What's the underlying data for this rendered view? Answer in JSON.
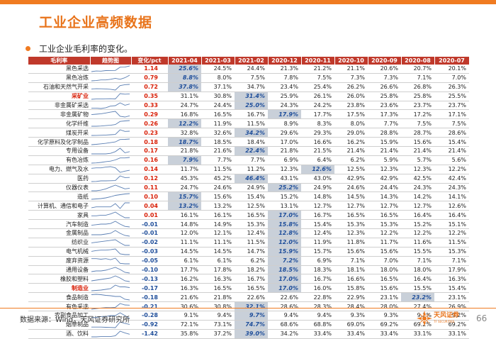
{
  "header": {
    "title": "工业企业高频数据"
  },
  "subtitle": "工业企业毛利率的变化。",
  "table": {
    "columns": [
      "毛利率",
      "趋势图",
      "变化/pct",
      "2021-04",
      "2021-03",
      "2021-02",
      "2020-12",
      "2020-11",
      "2020-10",
      "2020-09",
      "2020-08",
      "2020-07"
    ],
    "rows": [
      {
        "name": "黑色采选",
        "red": false,
        "delta": "1.14",
        "v": [
          "25.6%",
          "24.5%",
          "24.4%",
          "21.3%",
          "21.2%",
          "21.1%",
          "20.6%",
          "20.7%",
          "20.1%"
        ],
        "hl": 0
      },
      {
        "name": "黑色冶炼",
        "red": false,
        "delta": "0.79",
        "v": [
          "8.8%",
          "8.0%",
          "7.5%",
          "7.8%",
          "7.5%",
          "7.3%",
          "7.3%",
          "7.1%",
          "7.0%"
        ],
        "hl": 0
      },
      {
        "name": "石油和天然气开采",
        "red": false,
        "delta": "0.72",
        "v": [
          "37.8%",
          "37.1%",
          "34.7%",
          "23.4%",
          "25.4%",
          "26.2%",
          "26.6%",
          "26.8%",
          "26.3%"
        ],
        "hl": 0
      },
      {
        "name": "采矿业",
        "red": true,
        "delta": "0.35",
        "v": [
          "31.1%",
          "30.8%",
          "31.4%",
          "25.9%",
          "26.1%",
          "26.0%",
          "25.8%",
          "25.8%",
          "25.5%"
        ],
        "hl": 2
      },
      {
        "name": "非金属矿采选",
        "red": false,
        "delta": "0.33",
        "v": [
          "24.7%",
          "24.4%",
          "25.0%",
          "24.3%",
          "24.2%",
          "23.8%",
          "23.6%",
          "23.7%",
          "23.7%"
        ],
        "hl": 2
      },
      {
        "name": "非金属矿物",
        "red": false,
        "delta": "0.29",
        "v": [
          "16.8%",
          "16.5%",
          "16.7%",
          "17.9%",
          "17.7%",
          "17.5%",
          "17.3%",
          "17.2%",
          "17.1%"
        ],
        "hl": 3
      },
      {
        "name": "化学纤维",
        "red": false,
        "delta": "0.26",
        "v": [
          "12.2%",
          "11.9%",
          "11.5%",
          "8.9%",
          "8.3%",
          "8.0%",
          "7.7%",
          "7.5%",
          "7.5%"
        ],
        "hl": 0
      },
      {
        "name": "煤炭开采",
        "red": false,
        "delta": "0.23",
        "v": [
          "32.8%",
          "32.6%",
          "34.2%",
          "29.6%",
          "29.3%",
          "29.0%",
          "28.8%",
          "28.7%",
          "28.6%"
        ],
        "hl": 2
      },
      {
        "name": "化学原料及化学制品",
        "red": false,
        "delta": "0.18",
        "v": [
          "18.7%",
          "18.5%",
          "18.4%",
          "17.0%",
          "16.6%",
          "16.2%",
          "15.9%",
          "15.6%",
          "15.4%"
        ],
        "hl": 0
      },
      {
        "name": "专用设备",
        "red": false,
        "delta": "0.17",
        "v": [
          "21.8%",
          "21.6%",
          "22.4%",
          "21.8%",
          "21.5%",
          "21.4%",
          "21.4%",
          "21.4%",
          "21.4%"
        ],
        "hl": 2
      },
      {
        "name": "有色冶炼",
        "red": false,
        "delta": "0.16",
        "v": [
          "7.9%",
          "7.7%",
          "7.7%",
          "6.9%",
          "6.4%",
          "6.2%",
          "5.9%",
          "5.7%",
          "5.6%"
        ],
        "hl": 0
      },
      {
        "name": "电力、燃气及水",
        "red": false,
        "delta": "0.14",
        "v": [
          "11.7%",
          "11.5%",
          "11.2%",
          "12.3%",
          "12.6%",
          "12.5%",
          "12.3%",
          "12.3%",
          "12.2%"
        ],
        "hl": 4
      },
      {
        "name": "医药",
        "red": false,
        "delta": "0.12",
        "v": [
          "45.3%",
          "45.2%",
          "46.4%",
          "43.1%",
          "43.0%",
          "42.9%",
          "42.9%",
          "42.5%",
          "42.4%"
        ],
        "hl": 2
      },
      {
        "name": "仪器仪表",
        "red": false,
        "delta": "0.11",
        "v": [
          "24.7%",
          "24.6%",
          "24.9%",
          "25.2%",
          "24.9%",
          "24.6%",
          "24.4%",
          "24.3%",
          "24.3%"
        ],
        "hl": 3
      },
      {
        "name": "造纸",
        "red": false,
        "delta": "0.10",
        "v": [
          "15.7%",
          "15.6%",
          "15.4%",
          "15.2%",
          "14.8%",
          "14.5%",
          "14.3%",
          "14.2%",
          "14.1%"
        ],
        "hl": 0
      },
      {
        "name": "计算机、通信和电子",
        "red": false,
        "delta": "0.04",
        "v": [
          "13.2%",
          "13.2%",
          "12.5%",
          "13.1%",
          "12.7%",
          "12.7%",
          "12.7%",
          "12.7%",
          "12.6%"
        ],
        "hl": 0
      },
      {
        "name": "家具",
        "red": false,
        "delta": "0.01",
        "v": [
          "16.1%",
          "16.1%",
          "16.5%",
          "17.0%",
          "16.7%",
          "16.5%",
          "16.5%",
          "16.4%",
          "16.4%"
        ],
        "hl": 3
      },
      {
        "name": "汽车制造",
        "red": false,
        "delta": "-0.01",
        "v": [
          "14.8%",
          "14.9%",
          "15.3%",
          "15.8%",
          "15.4%",
          "15.3%",
          "15.3%",
          "15.2%",
          "15.1%"
        ],
        "hl": 3
      },
      {
        "name": "金属制品",
        "red": false,
        "delta": "-0.01",
        "v": [
          "12.0%",
          "12.1%",
          "12.4%",
          "12.8%",
          "12.4%",
          "12.3%",
          "12.2%",
          "12.2%",
          "12.2%"
        ],
        "hl": 3
      },
      {
        "name": "纺织业",
        "red": false,
        "delta": "-0.02",
        "v": [
          "11.1%",
          "11.1%",
          "11.5%",
          "12.0%",
          "11.9%",
          "11.8%",
          "11.7%",
          "11.6%",
          "11.5%"
        ],
        "hl": 3
      },
      {
        "name": "电气机械",
        "red": false,
        "delta": "-0.03",
        "v": [
          "14.5%",
          "14.5%",
          "14.7%",
          "15.9%",
          "15.7%",
          "15.6%",
          "15.6%",
          "15.5%",
          "15.3%"
        ],
        "hl": 3
      },
      {
        "name": "废弃资源",
        "red": false,
        "delta": "-0.05",
        "v": [
          "6.1%",
          "6.1%",
          "6.2%",
          "7.2%",
          "6.9%",
          "7.1%",
          "7.0%",
          "7.1%",
          "7.1%"
        ],
        "hl": 3
      },
      {
        "name": "通用设备",
        "red": false,
        "delta": "-0.10",
        "v": [
          "17.7%",
          "17.8%",
          "18.2%",
          "18.5%",
          "18.3%",
          "18.1%",
          "18.0%",
          "18.0%",
          "17.9%"
        ],
        "hl": 3
      },
      {
        "name": "橡胶和塑料",
        "red": false,
        "delta": "-0.13",
        "v": [
          "16.2%",
          "16.3%",
          "16.7%",
          "17.0%",
          "16.7%",
          "16.6%",
          "16.5%",
          "16.4%",
          "16.3%"
        ],
        "hl": 3
      },
      {
        "name": "制造业",
        "red": true,
        "delta": "-0.17",
        "v": [
          "16.3%",
          "16.5%",
          "16.5%",
          "17.0%",
          "16.0%",
          "15.8%",
          "15.6%",
          "15.5%",
          "15.4%"
        ],
        "hl": 3
      },
      {
        "name": "食品制造",
        "red": false,
        "delta": "-0.18",
        "v": [
          "21.6%",
          "21.8%",
          "22.6%",
          "22.6%",
          "22.8%",
          "22.9%",
          "23.1%",
          "23.2%",
          "23.1%"
        ],
        "hl": 7
      },
      {
        "name": "有色采选",
        "red": false,
        "delta": "-0.21",
        "v": [
          "30.6%",
          "30.8%",
          "32.1%",
          "28.6%",
          "28.3%",
          "28.4%",
          "28.0%",
          "27.4%",
          "26.9%"
        ],
        "hl": 2
      },
      {
        "name": "农副食品加工",
        "red": false,
        "delta": "-0.28",
        "v": [
          "9.1%",
          "9.4%",
          "9.7%",
          "9.4%",
          "9.4%",
          "9.3%",
          "9.3%",
          "9.2%",
          "9.2%"
        ],
        "hl": 2
      },
      {
        "name": "烟草制品",
        "red": false,
        "delta": "-0.92",
        "v": [
          "72.1%",
          "73.1%",
          "74.7%",
          "68.6%",
          "68.8%",
          "69.0%",
          "69.2%",
          "69.2%",
          "69.2%"
        ],
        "hl": 2
      },
      {
        "name": "酒、饮料",
        "red": false,
        "delta": "-1.42",
        "v": [
          "35.8%",
          "37.2%",
          "39.0%",
          "34.2%",
          "33.4%",
          "33.4%",
          "33.4%",
          "33.1%",
          "33.1%"
        ],
        "hl": 2
      }
    ]
  },
  "footer": {
    "source": "数据来源：Wind，天风证券研究所",
    "brand": "天风证券",
    "brand_sub": "TF SECURITIES",
    "page": "66"
  },
  "colors": {
    "accent": "#f07b21",
    "header_red": "#c0392b",
    "up": "#d81e06",
    "down": "#1f4e9a",
    "highlight": "#c9d0d9"
  }
}
